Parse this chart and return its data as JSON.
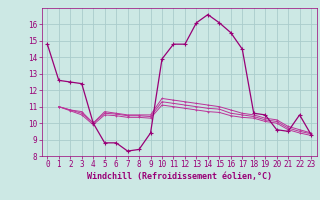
{
  "xlabel": "Windchill (Refroidissement éolien,°C)",
  "background_color": "#cce8e4",
  "grid_color": "#aacccc",
  "line_color": "#990077",
  "line_color2": "#bb3399",
  "ylim": [
    8,
    17
  ],
  "xlim": [
    -0.5,
    23.5
  ],
  "yticks": [
    8,
    9,
    10,
    11,
    12,
    13,
    14,
    15,
    16
  ],
  "xticks": [
    0,
    1,
    2,
    3,
    4,
    5,
    6,
    7,
    8,
    9,
    10,
    11,
    12,
    13,
    14,
    15,
    16,
    17,
    18,
    19,
    20,
    21,
    22,
    23
  ],
  "series1_x": [
    0,
    1,
    2,
    3,
    4,
    5,
    6,
    7,
    8,
    9,
    10,
    11,
    12,
    13,
    14,
    15,
    16,
    17,
    18,
    19,
    20,
    21,
    22,
    23
  ],
  "series1_y": [
    14.8,
    12.6,
    12.5,
    12.4,
    10.0,
    8.8,
    8.8,
    8.3,
    8.4,
    9.4,
    13.9,
    14.8,
    14.8,
    16.1,
    16.6,
    16.1,
    15.5,
    14.5,
    10.6,
    10.5,
    9.6,
    9.5,
    10.5,
    9.3
  ],
  "series2_x": [
    1,
    2,
    3,
    4,
    5,
    6,
    7,
    8,
    9,
    10,
    11,
    12,
    13,
    14,
    15,
    16,
    17,
    18,
    19,
    20,
    21,
    22,
    23
  ],
  "series2_y": [
    11.0,
    10.8,
    10.7,
    10.0,
    10.7,
    10.6,
    10.5,
    10.5,
    10.5,
    11.5,
    11.4,
    11.3,
    11.2,
    11.1,
    11.0,
    10.8,
    10.6,
    10.5,
    10.3,
    10.2,
    9.8,
    9.6,
    9.4
  ],
  "series3_x": [
    1,
    2,
    3,
    4,
    5,
    6,
    7,
    8,
    9,
    10,
    11,
    12,
    13,
    14,
    15,
    16,
    17,
    18,
    19,
    20,
    21,
    22,
    23
  ],
  "series3_y": [
    11.0,
    10.8,
    10.6,
    10.0,
    10.6,
    10.55,
    10.45,
    10.45,
    10.4,
    11.3,
    11.2,
    11.1,
    11.0,
    10.9,
    10.85,
    10.6,
    10.5,
    10.4,
    10.2,
    10.1,
    9.7,
    9.5,
    9.35
  ],
  "series4_x": [
    1,
    2,
    3,
    4,
    5,
    6,
    7,
    8,
    9,
    10,
    11,
    12,
    13,
    14,
    15,
    16,
    17,
    18,
    19,
    20,
    21,
    22,
    23
  ],
  "series4_y": [
    11.0,
    10.75,
    10.5,
    9.9,
    10.5,
    10.45,
    10.35,
    10.35,
    10.3,
    11.1,
    11.0,
    10.9,
    10.8,
    10.7,
    10.65,
    10.45,
    10.35,
    10.3,
    10.1,
    10.0,
    9.6,
    9.4,
    9.25
  ],
  "tick_fontsize": 5.5,
  "xlabel_fontsize": 6.0
}
